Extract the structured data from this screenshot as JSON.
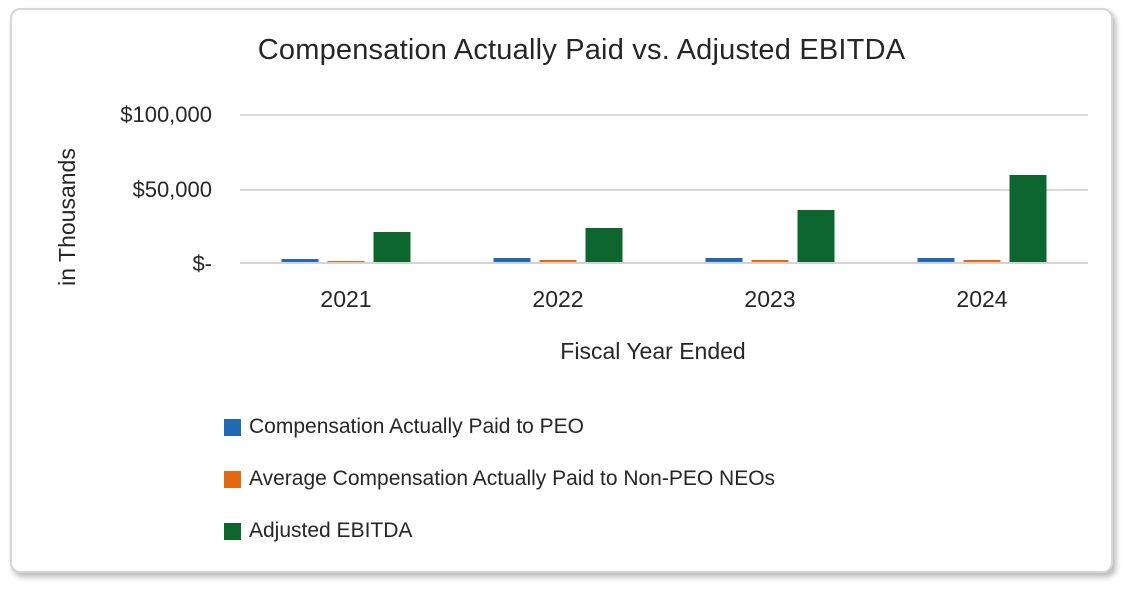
{
  "chart_data": {
    "type": "bar",
    "title": "Compensation Actually Paid vs. Adjusted EBITDA",
    "xlabel": "Fiscal Year Ended",
    "ylabel": "in Thousands",
    "categories": [
      "2021",
      "2022",
      "2023",
      "2024"
    ],
    "series": [
      {
        "name": "Compensation Actually Paid to PEO",
        "color": "#1F6AB2",
        "values": [
          1700,
          2900,
          3000,
          2900
        ]
      },
      {
        "name": "Average Compensation Actually Paid to Non-PEO NEOs",
        "color": "#E4680F",
        "values": [
          700,
          1100,
          1200,
          1400
        ]
      },
      {
        "name": "Adjusted EBITDA",
        "color": "#0E662F",
        "values": [
          20000,
          23000,
          34800,
          58300
        ]
      }
    ],
    "y_ticks": [
      "$-",
      "$50,000",
      "$100,000"
    ],
    "ylim": [
      0,
      100000
    ],
    "grid": "horizontal",
    "legend_position": "bottom-left"
  },
  "style_colors": {
    "gridline": "#DADADA",
    "axis_line": "#D4D4D4",
    "text": "#262626",
    "card_border": "#D6D6D6"
  }
}
